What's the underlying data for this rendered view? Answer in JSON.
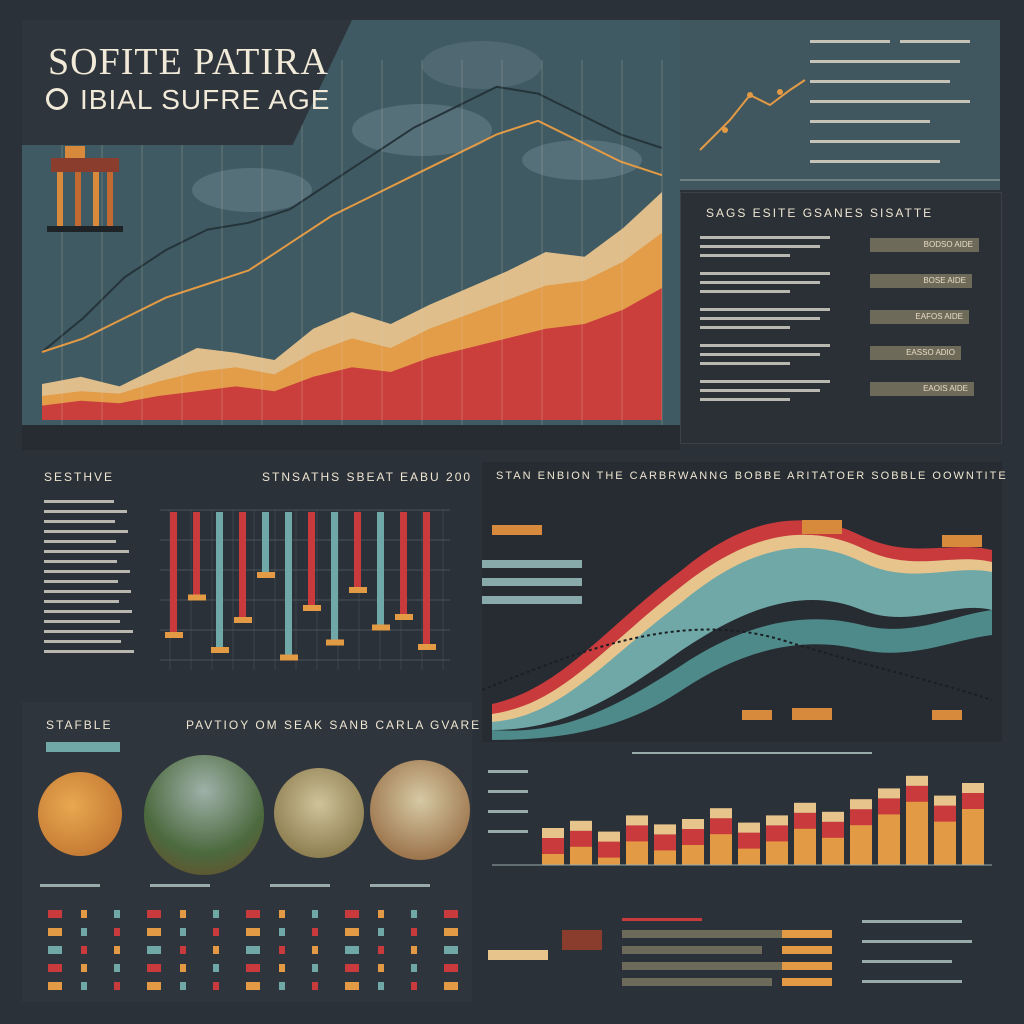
{
  "header": {
    "title_line1": "SOFITE PATIRA",
    "title_line2": "IBIAL SUFRE AGE"
  },
  "right_panel": {
    "title": "SAGS ESITE GSANES SISATTE",
    "bars": [
      {
        "label": "BODSO AIDE",
        "value": 0.75
      },
      {
        "label": "BOSE AIDE",
        "value": 0.7
      },
      {
        "label": "EAFOS AIDE",
        "value": 0.68
      },
      {
        "label": "EASSO ADIO",
        "value": 0.63
      },
      {
        "label": "EAOIS AIDE",
        "value": 0.72
      }
    ]
  },
  "sections": {
    "left_mid": "SESTHVE",
    "bar_chart": "STNSATHS SBEAT EABU 200",
    "wave_chart": "STAN ENBION THE CARBRWANNG BOBBE ARITATOER SOBBLE OOWNTITE",
    "stable": "STAFBLE",
    "photos": "PAVTIOY OM SEAK SANB CARLA GVARE"
  },
  "colors": {
    "red": "#c83a3c",
    "teal": "#6fa8a6",
    "orange": "#e39a45",
    "sand": "#e8c48d",
    "bg": "#2b3138",
    "panel_blue": "#3f5a62"
  },
  "chart_data": [
    {
      "type": "area",
      "series": [
        {
          "values": [
            15,
            18,
            14,
            22,
            30,
            28,
            25,
            38,
            45,
            40,
            48,
            55,
            62,
            70,
            68,
            80,
            95
          ]
        },
        {
          "values": [
            10,
            12,
            11,
            16,
            20,
            22,
            19,
            28,
            34,
            30,
            38,
            44,
            50,
            56,
            58,
            66,
            78
          ]
        },
        {
          "values": [
            6,
            8,
            7,
            10,
            12,
            14,
            12,
            18,
            22,
            20,
            26,
            30,
            34,
            38,
            40,
            46,
            55
          ]
        }
      ],
      "lines": [
        {
          "values": [
            20,
            30,
            42,
            50,
            56,
            58,
            62,
            70,
            78,
            86,
            92,
            98,
            96,
            90,
            84,
            80
          ]
        },
        {
          "values": [
            20,
            24,
            30,
            36,
            40,
            44,
            52,
            60,
            66,
            72,
            78,
            84,
            88,
            82,
            76,
            72
          ]
        }
      ]
    },
    {
      "type": "bar",
      "values": [
        80,
        55,
        90,
        70,
        40,
        95,
        62,
        85,
        50,
        75,
        68,
        88
      ]
    },
    {
      "type": "bar",
      "values": [
        30,
        38,
        26,
        44,
        34,
        40,
        52,
        36,
        44,
        58,
        48,
        62,
        74,
        88,
        66,
        80
      ]
    }
  ]
}
